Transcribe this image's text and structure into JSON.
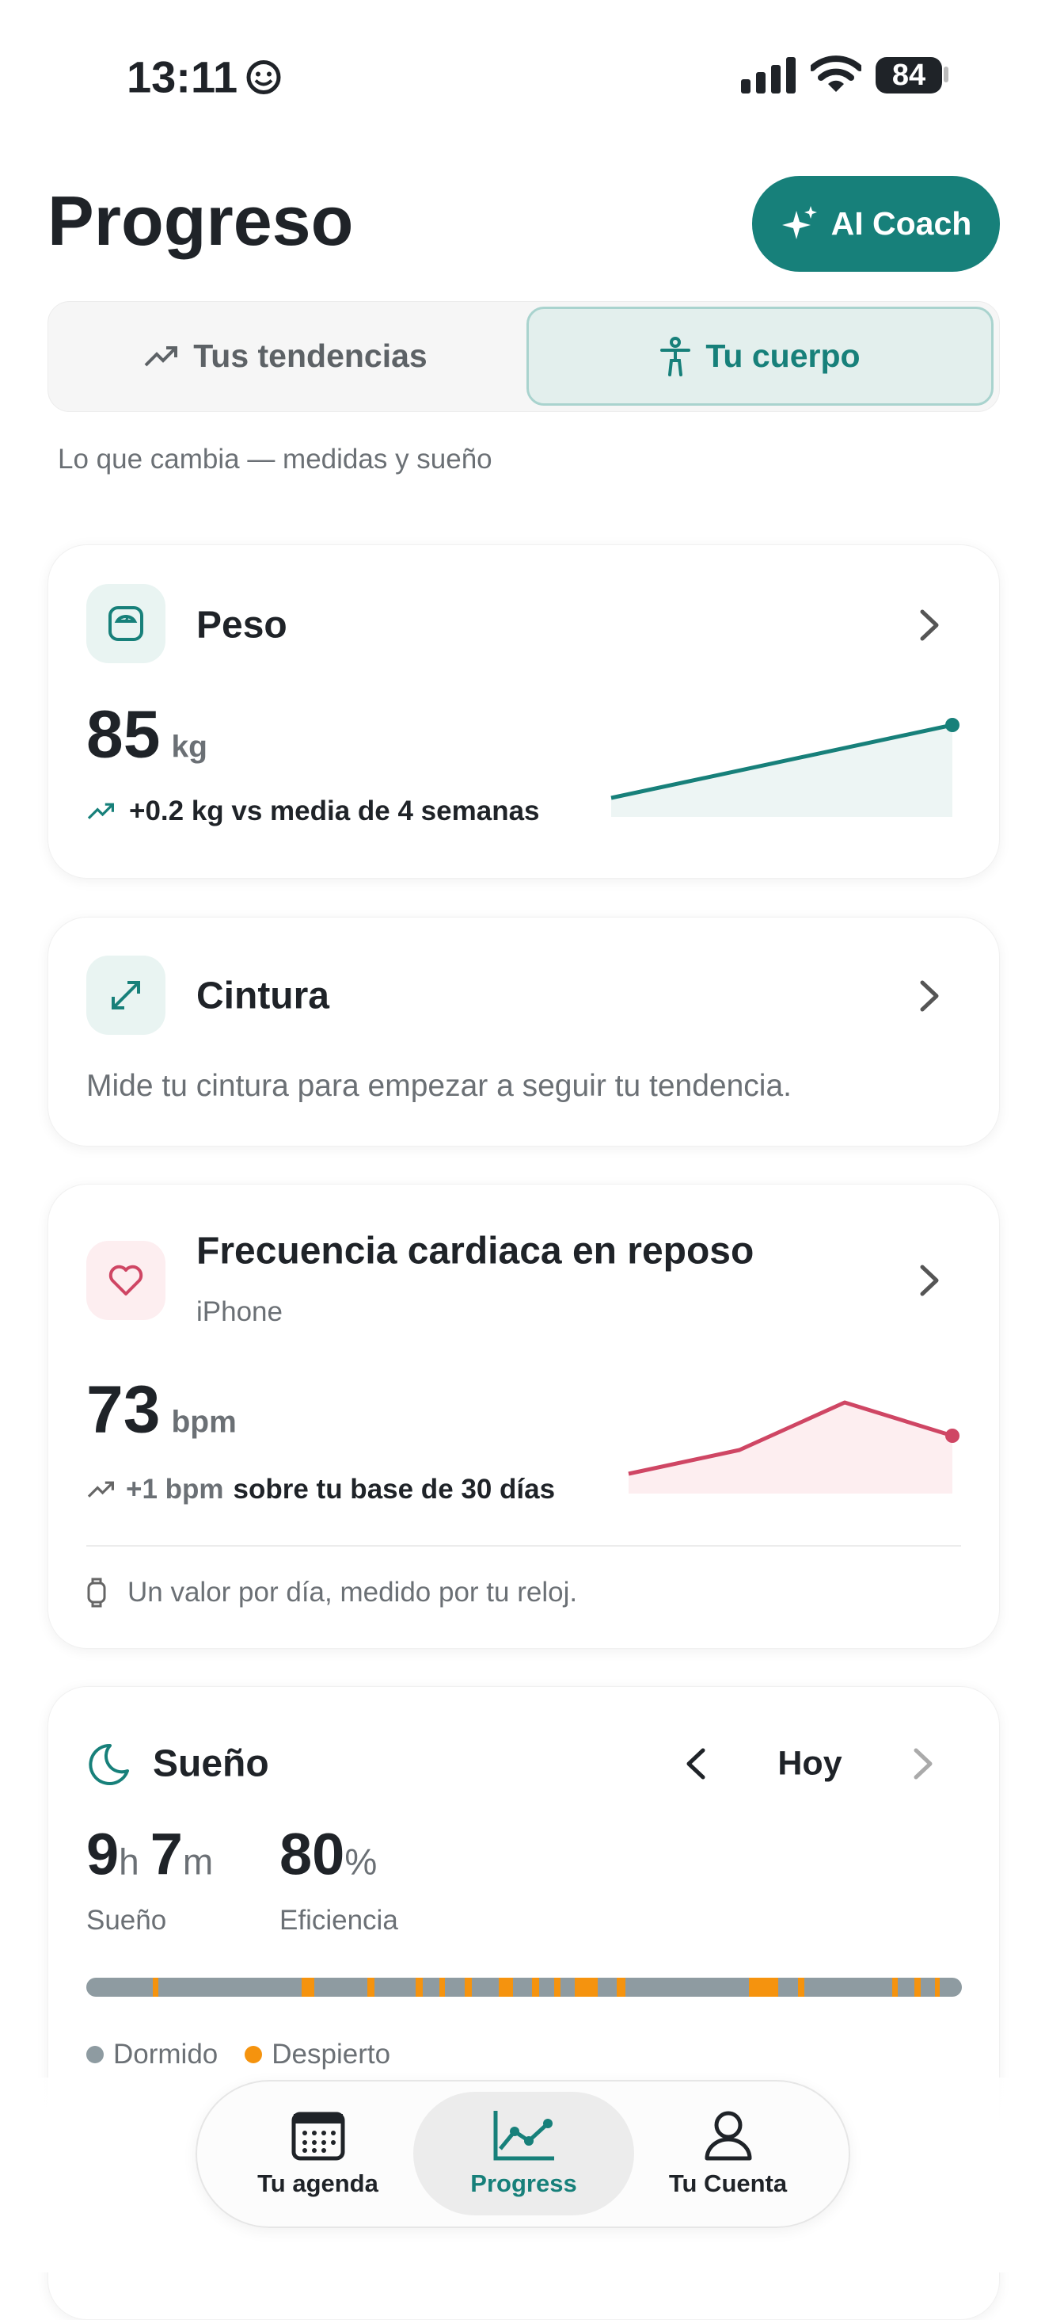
{
  "status_bar": {
    "time": "13:11",
    "battery": "84"
  },
  "header": {
    "title": "Progreso",
    "ai_button": "AI Coach"
  },
  "tabs": [
    {
      "label": "Tus tendencias",
      "active": false
    },
    {
      "label": "Tu cuerpo",
      "active": true
    }
  ],
  "subtitle": "Lo que cambia — medidas y sueño",
  "weight_card": {
    "title": "Peso",
    "value": "85",
    "unit": "kg",
    "change": "+0.2 kg vs media de 4 semanas"
  },
  "waist_card": {
    "title": "Cintura",
    "message": "Mide tu cintura para empezar a seguir tu tendencia."
  },
  "heart_rate_card": {
    "title": "Frecuencia cardiaca en reposo",
    "source": "iPhone",
    "value": "73",
    "unit": "bpm",
    "change_value": "+1 bpm",
    "change_text": "sobre tu base de 30 días",
    "footnote": "Un valor por día, medido por tu reloj."
  },
  "sleep_card": {
    "title": "Sueño",
    "period": "Hoy",
    "hours": "9",
    "hours_unit": "h",
    "minutes": "7",
    "minutes_unit": "m",
    "duration_label": "Sueño",
    "efficiency": "80",
    "efficiency_unit": "%",
    "efficiency_label": "Eficiencia",
    "legend": [
      "Dormido",
      "Despierto"
    ]
  },
  "nav": {
    "items": [
      {
        "label": "Tu agenda",
        "active": false
      },
      {
        "label": "Progress",
        "active": true
      },
      {
        "label": "Tu Cuenta",
        "active": false
      }
    ]
  }
}
